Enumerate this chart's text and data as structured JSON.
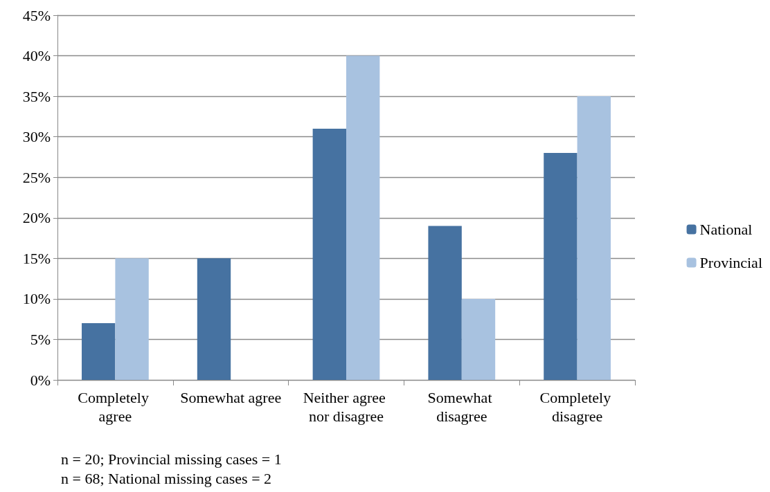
{
  "chart_data": {
    "type": "bar",
    "categories": [
      "Completely agree",
      "Somewhat agree",
      "Neither agree nor disagree",
      "Somewhat disagree",
      "Completely disagree"
    ],
    "series": [
      {
        "name": "National",
        "color": "#4672a1",
        "values": [
          7,
          15,
          31,
          19,
          28
        ]
      },
      {
        "name": "Provincial",
        "color": "#a8c2e0",
        "values": [
          15,
          0,
          40,
          10,
          35
        ]
      }
    ],
    "ylim": [
      0,
      45
    ],
    "yticks": [
      {
        "value": 0,
        "label": "0%"
      },
      {
        "value": 5,
        "label": "5%"
      },
      {
        "value": 10,
        "label": "10%"
      },
      {
        "value": 15,
        "label": "15%"
      },
      {
        "value": 20,
        "label": "20%"
      },
      {
        "value": 25,
        "label": "25%"
      },
      {
        "value": 30,
        "label": "30%"
      },
      {
        "value": 35,
        "label": "35%"
      },
      {
        "value": 40,
        "label": "40%"
      },
      {
        "value": 45,
        "label": "45%"
      }
    ],
    "grid": "y",
    "legend": "right",
    "annotations": [
      "n = 20; Provincial missing cases = 1",
      "n = 68; National missing cases = 2"
    ]
  }
}
